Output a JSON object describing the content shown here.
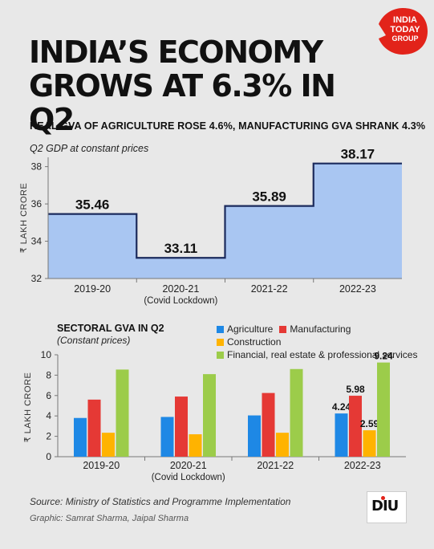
{
  "brand": {
    "line1": "INDIA",
    "line2": "TODAY",
    "line3": "GROUP"
  },
  "title_line1": "INDIA’S ECONOMY",
  "title_line2": "GROWS AT 6.3% IN Q2",
  "subtitle": "REAL GVA OF AGRICULTURE ROSE 4.6%, MANUFACTURING GVA SHRANK 4.3%",
  "footer": {
    "source": "Source: Ministry of Statistics and Programme Implementation",
    "graphic": "Graphic: Samrat Sharma, Jaipal Sharma",
    "logo": "DIU"
  },
  "colors": {
    "area_fill": "#a9c6f2",
    "area_line": "#1b2a5c",
    "agriculture": "#1e88e5",
    "manufacturing": "#e53935",
    "construction": "#ffb300",
    "financial": "#9ccc4a",
    "brand_red": "#e2231a"
  },
  "chart_data": [
    {
      "type": "area",
      "title": "Q2 GDP at constant prices",
      "ylabel": "₹ LAKH CRORE",
      "categories": [
        "2019-20",
        "2020-21",
        "2021-22",
        "2022-23"
      ],
      "category_notes": [
        "",
        "(Covid Lockdown)",
        "",
        ""
      ],
      "values": [
        35.46,
        33.11,
        35.89,
        38.17
      ],
      "data_labels": [
        "35.46",
        "33.11",
        "35.89",
        "38.17"
      ],
      "ylim": [
        32,
        38.5
      ],
      "yticks": [
        32,
        34,
        36,
        38
      ],
      "grid": false,
      "step": true
    },
    {
      "type": "bar",
      "title": "SECTORAL GVA IN Q2",
      "subtitle": "(Constant prices)",
      "ylabel": "₹ LAKH CRORE",
      "categories": [
        "2019-20",
        "2020-21",
        "2021-22",
        "2022-23"
      ],
      "category_notes": [
        "",
        "(Covid Lockdown)",
        "",
        ""
      ],
      "ylim": [
        0,
        10
      ],
      "yticks": [
        0,
        2,
        4,
        6,
        8,
        10
      ],
      "legend_position": "top-right",
      "series": [
        {
          "name": "Agriculture",
          "values": [
            3.8,
            3.9,
            4.05,
            4.24
          ],
          "data_labels": [
            "",
            "",
            "",
            "4.24"
          ]
        },
        {
          "name": "Manufacturing",
          "values": [
            5.6,
            5.9,
            6.25,
            5.98
          ],
          "data_labels": [
            "",
            "",
            "",
            "5.98"
          ]
        },
        {
          "name": "Construction",
          "values": [
            2.35,
            2.2,
            2.35,
            2.59
          ],
          "data_labels": [
            "",
            "",
            "",
            "2.59"
          ]
        },
        {
          "name": "Financial, real estate & professional services",
          "values": [
            8.55,
            8.1,
            8.6,
            9.24
          ],
          "data_labels": [
            "",
            "",
            "",
            "9.24"
          ]
        }
      ]
    }
  ]
}
